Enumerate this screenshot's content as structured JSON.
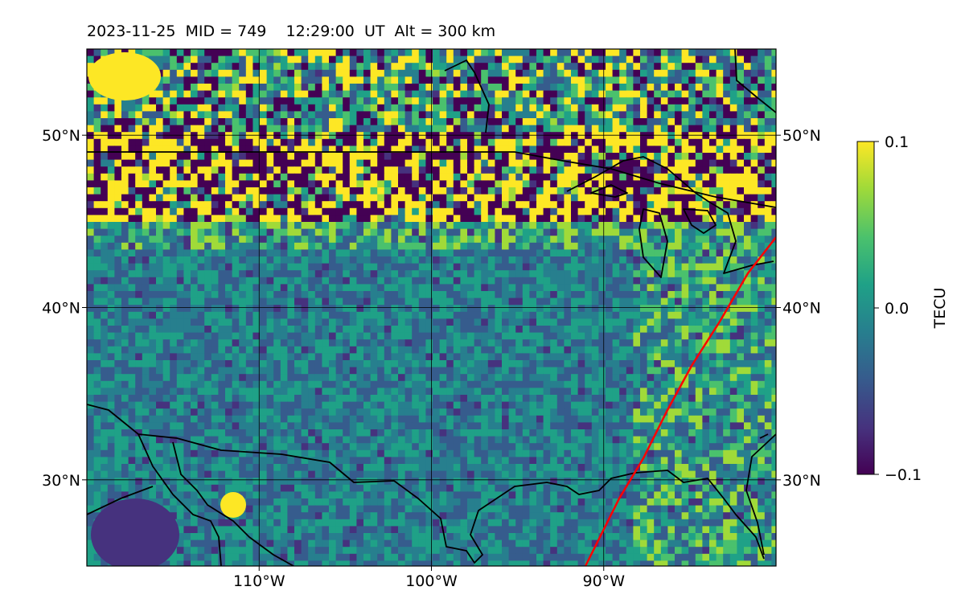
{
  "title": "2023-11-25  MID = 749    12:29:00  UT  Alt = 300 km",
  "map": {
    "lon_range": [
      -120,
      -80
    ],
    "lat_range": [
      25,
      55
    ],
    "lat_ticks": [
      {
        "value": 30,
        "label": "30°N"
      },
      {
        "value": 40,
        "label": "40°N"
      },
      {
        "value": 50,
        "label": "50°N"
      }
    ],
    "lon_ticks": [
      {
        "value": -110,
        "label": "110°W"
      },
      {
        "value": -100,
        "label": "100°W"
      },
      {
        "value": -90,
        "label": "90°W"
      }
    ],
    "grid": true,
    "colormap": "viridis",
    "track_color": "#ff0000",
    "coast_color": "#000000"
  },
  "colorbar": {
    "title": "TECU",
    "ticks": [
      {
        "value": 0.1,
        "label": "0.1"
      },
      {
        "value": 0.0,
        "label": "0.0"
      },
      {
        "value": -0.1,
        "label": "−0.1"
      }
    ],
    "range": [
      -0.1,
      0.1
    ]
  }
}
